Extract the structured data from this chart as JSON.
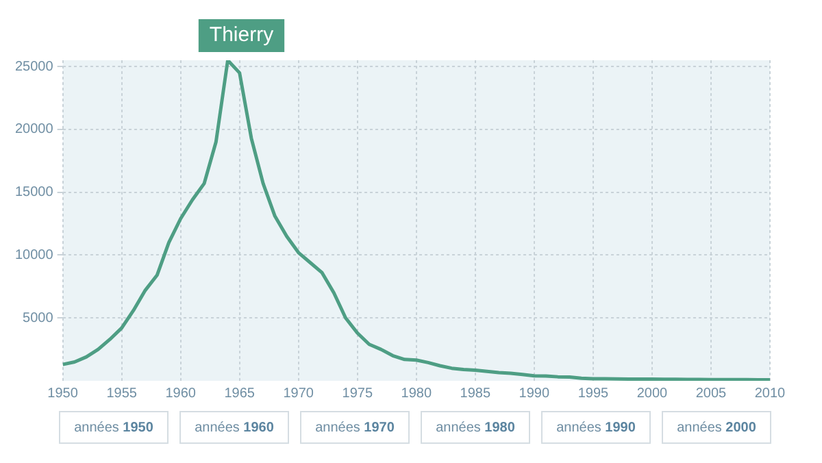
{
  "chart_data": {
    "type": "line",
    "title": "Thierry",
    "x": [
      1950,
      1951,
      1952,
      1953,
      1954,
      1955,
      1956,
      1957,
      1958,
      1959,
      1960,
      1961,
      1962,
      1963,
      1964,
      1965,
      1966,
      1967,
      1968,
      1969,
      1970,
      1971,
      1972,
      1973,
      1974,
      1975,
      1976,
      1977,
      1978,
      1979,
      1980,
      1981,
      1982,
      1983,
      1984,
      1985,
      1986,
      1987,
      1988,
      1989,
      1990,
      1991,
      1992,
      1993,
      1994,
      1995,
      1996,
      1997,
      1998,
      1999,
      2000,
      2001,
      2002,
      2003,
      2004,
      2005,
      2006,
      2007,
      2008,
      2009,
      2010
    ],
    "series": [
      {
        "color": "#4e9e84",
        "values": [
          1300,
          1500,
          1900,
          2500,
          3300,
          4200,
          5600,
          7200,
          8400,
          11000,
          12900,
          14400,
          15700,
          19000,
          25500,
          24500,
          19300,
          15700,
          13100,
          11500,
          10200,
          9400,
          8600,
          7000,
          5000,
          3800,
          2900,
          2500,
          2000,
          1700,
          1650,
          1450,
          1200,
          1000,
          900,
          850,
          750,
          650,
          600,
          500,
          400,
          380,
          320,
          300,
          200,
          170,
          160,
          150,
          140,
          130,
          130,
          120,
          120,
          110,
          110,
          100,
          100,
          100,
          90,
          80,
          80
        ]
      }
    ],
    "xlim": [
      1950,
      2010
    ],
    "xticks": [
      1950,
      1955,
      1960,
      1965,
      1970,
      1975,
      1980,
      1985,
      1990,
      1995,
      2000,
      2005,
      2010
    ],
    "ylim": [
      0,
      25500
    ],
    "yticks": [
      5000,
      10000,
      15000,
      20000,
      25000
    ],
    "grid": true,
    "legend": false,
    "marker": "none",
    "line_style": "solid",
    "annotations": [
      "années 1950",
      "années 1960",
      "années 1970",
      "années 1980",
      "années 1990",
      "années 2000"
    ]
  }
}
